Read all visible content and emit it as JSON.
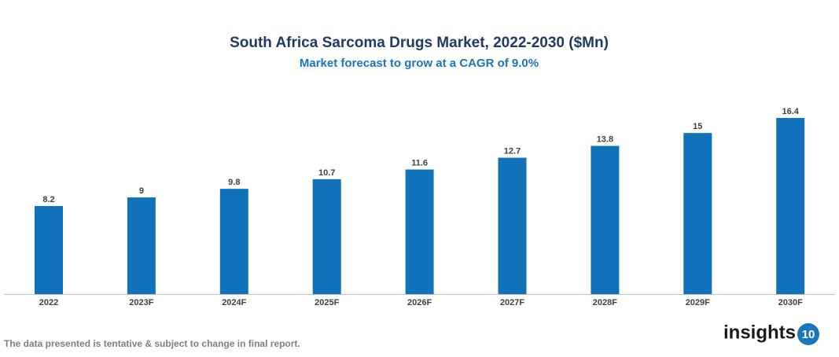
{
  "chart_data": {
    "type": "bar",
    "title": "South Africa Sarcoma Drugs Market, 2022-2030 ($Mn)",
    "subtitle": "Market forecast to grow at a CAGR of 9.0%",
    "categories": [
      "2022",
      "2023F",
      "2024F",
      "2025F",
      "2026F",
      "2027F",
      "2028F",
      "2029F",
      "2030F"
    ],
    "values": [
      8.2,
      9,
      9.8,
      10.7,
      11.6,
      12.7,
      13.8,
      15,
      16.4
    ],
    "color": "#1172ba"
  },
  "footer": {
    "note": "The data presented is tentative & subject to change in final report.",
    "logo_text": "insights",
    "logo_number": "10"
  }
}
